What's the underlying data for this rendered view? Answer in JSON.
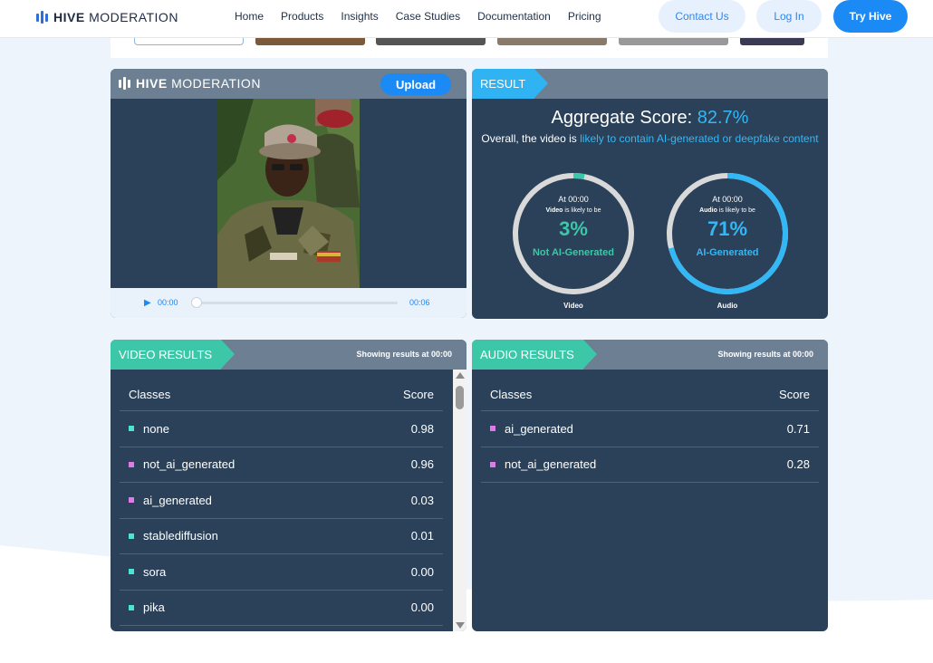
{
  "nav": {
    "brand_bold": "HIVE",
    "brand_light": "MODERATION",
    "links": [
      "Home",
      "Products",
      "Insights",
      "Case Studies",
      "Documentation",
      "Pricing"
    ],
    "contact": "Contact Us",
    "login": "Log In",
    "try": "Try Hive"
  },
  "uploader": {
    "brand_bold": "HIVE",
    "brand_light": "MODERATION",
    "upload_label": "Upload",
    "play_icon": "play-icon",
    "time_current": "00:00",
    "time_total": "00:06",
    "progress": 0
  },
  "result": {
    "tab_label": "RESULT",
    "aggregate_label": "Aggregate Score:",
    "aggregate_value": "82.7%",
    "overall_prefix": "Overall, the video is",
    "overall_highlight": "likely to contain AI-generated or deepfake content",
    "video": {
      "at": "At 00:00",
      "likely_bold": "Video",
      "likely_rest": " is likely to be",
      "percent": "3%",
      "fraction": 0.03,
      "label": "Not AI-Generated",
      "caption": "Video",
      "color": "#3cc8a8"
    },
    "audio": {
      "at": "At 00:00",
      "likely_bold": "Audio",
      "likely_rest": " is likely to be",
      "percent": "71%",
      "fraction": 0.71,
      "label": "AI-Generated",
      "caption": "Audio",
      "color": "#33b8f5"
    }
  },
  "video_results": {
    "tab_label": "VIDEO RESULTS",
    "showing_prefix": "Showing results at",
    "showing_time": "00:00",
    "col_class": "Classes",
    "col_score": "Score",
    "rows": [
      {
        "cls": "none",
        "score": "0.98",
        "color": "#49e6d3"
      },
      {
        "cls": "not_ai_generated",
        "score": "0.96",
        "color": "#e07ae8"
      },
      {
        "cls": "ai_generated",
        "score": "0.03",
        "color": "#e07ae8"
      },
      {
        "cls": "stablediffusion",
        "score": "0.01",
        "color": "#49e6d3"
      },
      {
        "cls": "sora",
        "score": "0.00",
        "color": "#49e6d3"
      },
      {
        "cls": "pika",
        "score": "0.00",
        "color": "#49e6d3"
      }
    ]
  },
  "audio_results": {
    "tab_label": "AUDIO RESULTS",
    "showing_prefix": "Showing results at",
    "showing_time": "00:00",
    "col_class": "Classes",
    "col_score": "Score",
    "rows": [
      {
        "cls": "ai_generated",
        "score": "0.71",
        "color": "#e07ae8"
      },
      {
        "cls": "not_ai_generated",
        "score": "0.28",
        "color": "#e07ae8"
      }
    ]
  }
}
